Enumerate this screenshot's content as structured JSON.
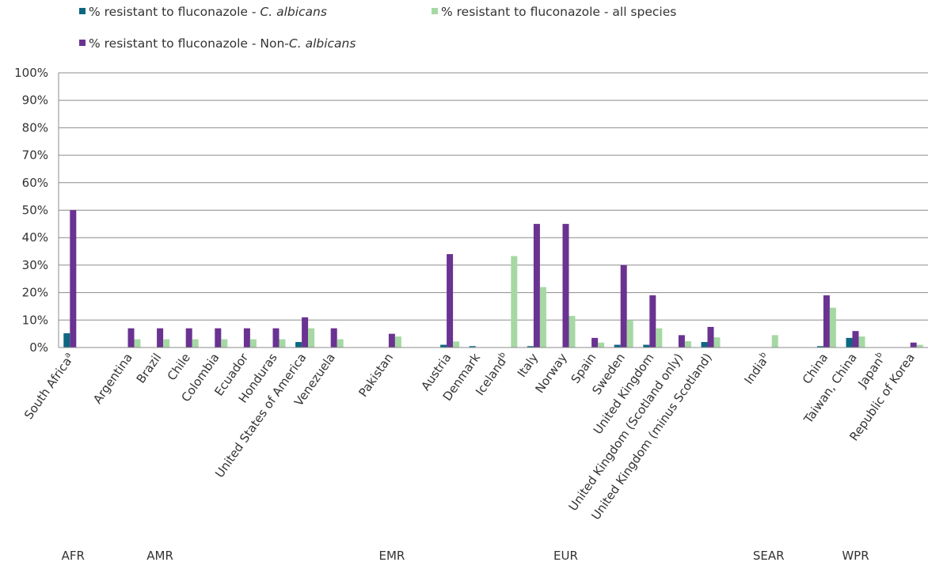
{
  "chart_data": {
    "type": "bar",
    "legend": {
      "position": "top-left",
      "entries": [
        {
          "series": 0,
          "prefix": "% resistant to fluconazole - ",
          "italic": "C. albicans",
          "suffix": ""
        },
        {
          "series": 2,
          "prefix": "% resistant to fluconazole - all species",
          "italic": "",
          "suffix": ""
        },
        {
          "series": 1,
          "prefix": "% resistant to fluconazole - Non-",
          "italic": "C. albicans",
          "suffix": ""
        }
      ]
    },
    "y_axis": {
      "min": 0,
      "max": 100,
      "ticks": [
        "0%",
        "10%",
        "20%",
        "30%",
        "40%",
        "50%",
        "60%",
        "70%",
        "80%",
        "90%",
        "100%"
      ]
    },
    "grid": true,
    "categories": [
      "South Africa",
      "",
      "Argentina",
      "Brazil",
      "Chile",
      "Colombia",
      "Ecuador",
      "Honduras",
      "United States of America",
      "Venezuela",
      "",
      "Pakistan",
      "",
      "Austria",
      "Denmark",
      "Iceland",
      "Italy",
      "Norway",
      "Spain",
      "Sweden",
      "United Kingdom",
      "United Kingdom (Scotland only)",
      "United Kingdom (minus Scotland)",
      "",
      "India",
      "",
      "China",
      "Taiwan, China",
      "Japan",
      "Republic of Korea"
    ],
    "category_superscripts": [
      "a",
      "",
      "",
      "",
      "",
      "",
      "",
      "",
      "",
      "",
      "",
      "",
      "",
      "",
      "",
      "b",
      "",
      "",
      "",
      "",
      "",
      "",
      "",
      "",
      "b",
      "",
      "",
      "",
      "b",
      ""
    ],
    "series": [
      {
        "name": "% resistant to fluconazole - C. albicans",
        "color": "#0e6782",
        "values": [
          5.2,
          null,
          null,
          null,
          null,
          null,
          null,
          null,
          2.0,
          null,
          null,
          null,
          null,
          1.0,
          0.5,
          null,
          0.5,
          null,
          null,
          1.0,
          1.0,
          null,
          2.0,
          null,
          null,
          null,
          0.5,
          3.5,
          null,
          null
        ]
      },
      {
        "name": "% resistant to fluconazole - Non-C. albicans",
        "color": "#6a3291",
        "values": [
          50.0,
          null,
          7.0,
          7.0,
          7.0,
          7.0,
          7.0,
          7.0,
          11.0,
          7.0,
          null,
          5.0,
          null,
          34.0,
          null,
          null,
          45.0,
          45.0,
          3.5,
          30.0,
          19.0,
          4.5,
          7.5,
          null,
          null,
          null,
          19.0,
          6.0,
          null,
          1.8
        ]
      },
      {
        "name": "% resistant to fluconazole - all species",
        "color": "#a6d8a4",
        "values": [
          null,
          null,
          3.0,
          3.0,
          3.0,
          3.0,
          3.0,
          3.0,
          7.0,
          3.0,
          null,
          4.0,
          null,
          2.2,
          null,
          33.3,
          22.0,
          11.5,
          1.8,
          10.0,
          7.0,
          2.3,
          3.7,
          null,
          4.5,
          null,
          14.5,
          4.0,
          null,
          1.0
        ]
      }
    ],
    "regions": [
      {
        "label": "AFR",
        "index": 0
      },
      {
        "label": "AMR",
        "index": 3
      },
      {
        "label": "EMR",
        "index": 11
      },
      {
        "label": "EUR",
        "index": 17
      },
      {
        "label": "SEAR",
        "index": 24
      },
      {
        "label": "WPR",
        "index": 27
      }
    ]
  }
}
